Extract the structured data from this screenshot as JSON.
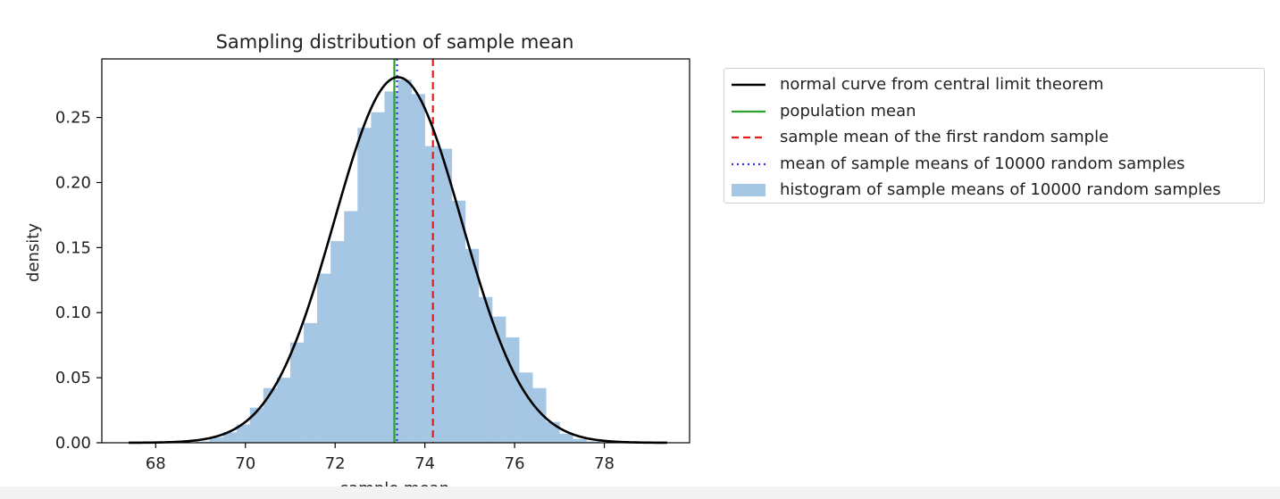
{
  "chart_data": {
    "type": "histogram",
    "title": "Sampling distribution of sample mean",
    "xlabel": "sample mean",
    "ylabel": "density",
    "xlim": [
      66.8,
      79.9
    ],
    "ylim": [
      0,
      0.295
    ],
    "xticks": [
      68,
      70,
      72,
      74,
      76,
      78
    ],
    "yticks": [
      0.0,
      0.05,
      0.1,
      0.15,
      0.2,
      0.25
    ],
    "ytick_labels": [
      "0.00",
      "0.05",
      "0.10",
      "0.15",
      "0.20",
      "0.25"
    ],
    "histogram": {
      "bin_width": 0.3,
      "bins": [
        {
          "x0": 68.9,
          "density": 0.001
        },
        {
          "x0": 69.2,
          "density": 0.004
        },
        {
          "x0": 69.5,
          "density": 0.008
        },
        {
          "x0": 69.8,
          "density": 0.014
        },
        {
          "x0": 70.1,
          "density": 0.027
        },
        {
          "x0": 70.4,
          "density": 0.042
        },
        {
          "x0": 70.7,
          "density": 0.05
        },
        {
          "x0": 71.0,
          "density": 0.077
        },
        {
          "x0": 71.3,
          "density": 0.092
        },
        {
          "x0": 71.6,
          "density": 0.13
        },
        {
          "x0": 71.9,
          "density": 0.155
        },
        {
          "x0": 72.2,
          "density": 0.178
        },
        {
          "x0": 72.5,
          "density": 0.242
        },
        {
          "x0": 72.8,
          "density": 0.254
        },
        {
          "x0": 73.1,
          "density": 0.27
        },
        {
          "x0": 73.4,
          "density": 0.279
        },
        {
          "x0": 73.7,
          "density": 0.268
        },
        {
          "x0": 74.0,
          "density": 0.228
        },
        {
          "x0": 74.3,
          "density": 0.226
        },
        {
          "x0": 74.6,
          "density": 0.186
        },
        {
          "x0": 74.9,
          "density": 0.149
        },
        {
          "x0": 75.2,
          "density": 0.112
        },
        {
          "x0": 75.5,
          "density": 0.097
        },
        {
          "x0": 75.8,
          "density": 0.081
        },
        {
          "x0": 76.1,
          "density": 0.054
        },
        {
          "x0": 76.4,
          "density": 0.042
        },
        {
          "x0": 76.7,
          "density": 0.016
        },
        {
          "x0": 77.0,
          "density": 0.007
        },
        {
          "x0": 77.3,
          "density": 0.003
        },
        {
          "x0": 77.6,
          "density": 0.001
        }
      ]
    },
    "normal_curve": {
      "mean": 73.4,
      "sd": 1.42,
      "x_range": [
        67.4,
        79.4
      ]
    },
    "population_mean": 73.32,
    "first_sample_mean": 74.18,
    "mean_of_sample_means": 73.38,
    "legend": {
      "position": "outside-right",
      "entries": [
        {
          "label": "normal curve from central limit theorem",
          "style": "solid",
          "color": "#000000"
        },
        {
          "label": "population mean",
          "style": "solid",
          "color": "#2ca02c"
        },
        {
          "label": "sample mean of the first random sample",
          "style": "dashed",
          "color": "#e41a1c"
        },
        {
          "label": "mean of sample means of 10000 random samples",
          "style": "dotted",
          "color": "#3333ee"
        },
        {
          "label": "histogram of sample means of 10000 random samples",
          "style": "patch",
          "color": "#a6c7e3"
        }
      ]
    },
    "colors": {
      "hist": "#a6c7e3",
      "curve": "#000000",
      "population_mean": "#2ca02c",
      "first_sample_mean": "#e41a1c",
      "mean_of_means": "#3333ee"
    }
  }
}
